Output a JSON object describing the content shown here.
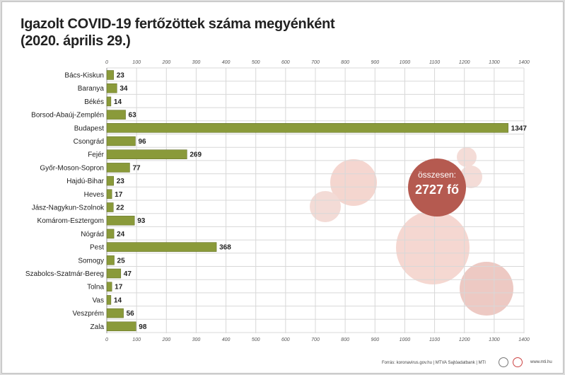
{
  "title": {
    "line1": "Igazolt COVID-19 fertőzöttek száma megyénként",
    "line2": "(2020. április 29.)"
  },
  "total": {
    "label": "összesen:",
    "value": "2727 fő"
  },
  "footer": {
    "source": "Forrás: koronavirus.gov.hu | MTVA Sajtóadatbank | MTI",
    "site": "www.mti.hu"
  },
  "colors": {
    "bar": "#8a9a3a",
    "bubble": "#b55a50",
    "grid": "#d8d8d8"
  },
  "chart_data": {
    "type": "bar",
    "orientation": "horizontal",
    "categories": [
      "Bács-Kiskun",
      "Baranya",
      "Békés",
      "Borsod-Abaúj-Zemplén",
      "Budapest",
      "Csongrád",
      "Fejér",
      "Győr-Moson-Sopron",
      "Hajdú-Bihar",
      "Heves",
      "Jász-Nagykun-Szolnok",
      "Komárom-Esztergom",
      "Nógrád",
      "Pest",
      "Somogy",
      "Szabolcs-Szatmár-Bereg",
      "Tolna",
      "Vas",
      "Veszprém",
      "Zala"
    ],
    "values": [
      23,
      34,
      14,
      63,
      1347,
      96,
      269,
      77,
      23,
      17,
      22,
      93,
      24,
      368,
      25,
      47,
      17,
      14,
      56,
      98
    ],
    "xlim": [
      0,
      1400
    ],
    "xticks": [
      0,
      100,
      200,
      300,
      400,
      500,
      600,
      700,
      800,
      900,
      1000,
      1100,
      1200,
      1300,
      1400
    ],
    "grid": true,
    "data_labels": true
  }
}
